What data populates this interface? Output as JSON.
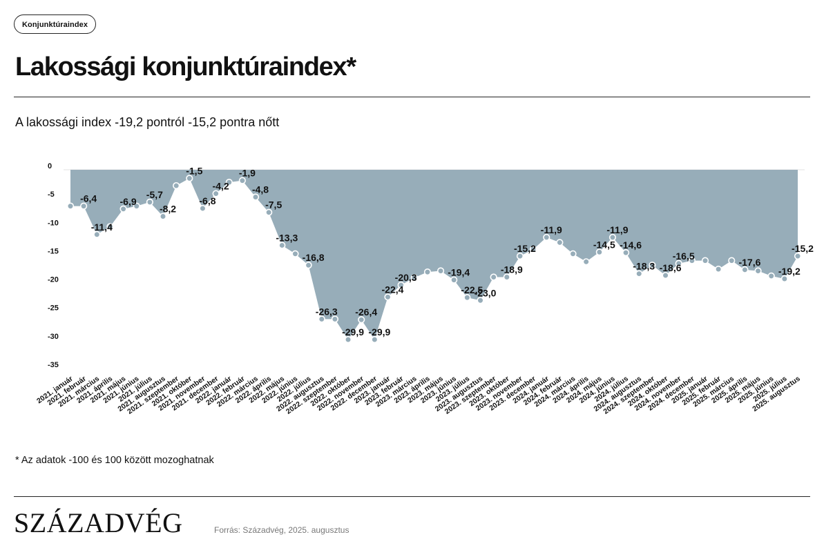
{
  "header": {
    "badge": "Konjunktúraindex",
    "title": "Lakossági konjunktúraindex*",
    "subtitle": "A lakossági index -19,2 pontról -15,2 pontra nőtt"
  },
  "footer": {
    "footnote": "* Az adatok -100 és 100 között mozoghatnak",
    "logo": "SZÁZADVÉG",
    "source": "Forrás: Századvég, 2025. augusztus"
  },
  "colors": {
    "area": "#97adb9",
    "point": "#97adb9",
    "point_stroke": "#ffffff"
  },
  "chart_data": {
    "type": "area",
    "ylim": [
      -35,
      0
    ],
    "yticks": [
      0,
      -5,
      -10,
      -15,
      -20,
      -25,
      -30,
      -35
    ],
    "grid": false,
    "legend": "none",
    "categories": [
      "2021. január",
      "2021. február",
      "2021. március",
      "2021. április",
      "2021. május",
      "2021. június",
      "2021. július",
      "2021. augusztus",
      "2021. szeptember",
      "2021. október",
      "2021. november",
      "2021. december",
      "2022. január",
      "2022. február",
      "2022. március",
      "2022. április",
      "2022. május",
      "2022. június",
      "2022. július",
      "2022. augusztus",
      "2022. szeptember",
      "2022. október",
      "2022. november",
      "2022. december",
      "2023. január",
      "2023. február",
      "2023. március",
      "2023. április",
      "2023. május",
      "2023. június",
      "2023. július",
      "2023. augusztus",
      "2023. szeptember",
      "2023. október",
      "2023. november",
      "2023. december",
      "2024. január",
      "2024. február",
      "2024. március",
      "2024. április",
      "2024. május",
      "2024. június",
      "2024. július",
      "2024. augusztus",
      "2024. szeptember",
      "2024. október",
      "2024. november",
      "2024. december",
      "2025. január",
      "2025. február",
      "2025. március",
      "2025. április",
      "2025. május",
      "2025. június",
      "2025. július",
      "2025. augusztus"
    ],
    "values": [
      -6.4,
      -6.4,
      -11.4,
      -10.0,
      -6.9,
      -6.4,
      -5.7,
      -8.2,
      -2.8,
      -1.5,
      -6.8,
      -4.2,
      -2.2,
      -1.9,
      -4.8,
      -7.5,
      -13.3,
      -14.8,
      -16.8,
      -26.3,
      -26.3,
      -29.9,
      -26.4,
      -29.9,
      -22.4,
      -20.3,
      -19.0,
      -18.0,
      -17.8,
      -19.4,
      -22.5,
      -23.0,
      -18.9,
      -18.9,
      -15.2,
      -14.0,
      -11.9,
      -12.8,
      -14.8,
      -16.2,
      -14.5,
      -11.9,
      -14.6,
      -18.3,
      -16.8,
      -18.6,
      -16.5,
      -16.0,
      -16.0,
      -17.5,
      -16.0,
      -17.6,
      -17.8,
      -18.7,
      -19.2,
      -15.2
    ],
    "value_labels": [
      "",
      "-6,4",
      "-11,4",
      "",
      "-6,9",
      "",
      "-5,7",
      "-8,2",
      "",
      "-1,5",
      "-6,8",
      "-4,2",
      "",
      "-1,9",
      "-4,8",
      "-7,5",
      "-13,3",
      "",
      "-16,8",
      "-26,3",
      "",
      "-29,9",
      "-26,4",
      "-29,9",
      "-22,4",
      "-20,3",
      "",
      "",
      "",
      "-19,4",
      "-22,5",
      "-23,0",
      "",
      "-18,9",
      "-15,2",
      "",
      "-11,9",
      "",
      "",
      "",
      "-14,5",
      "-11,9",
      "-14,6",
      "-18,3",
      "",
      "-18,6",
      "-16,5",
      "",
      "",
      "",
      "",
      "-17,6",
      "",
      "",
      "-19,2",
      "-15,2"
    ]
  }
}
